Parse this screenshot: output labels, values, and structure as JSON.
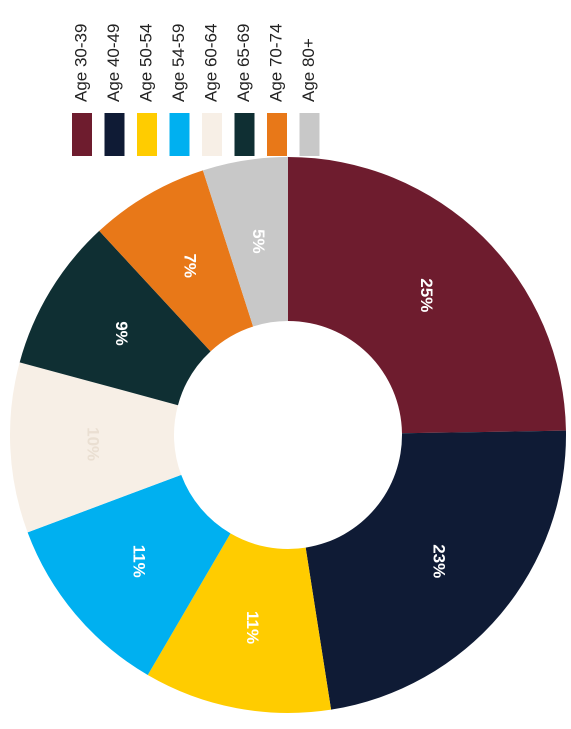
{
  "chart_data": {
    "type": "pie",
    "variant": "donut",
    "orientation": "rotated 90 degrees clockwise",
    "categories": [
      "Age 30-39",
      "Age 40-49",
      "Age 50-54",
      "Age 54-59",
      "Age 60-64",
      "Age 65-69",
      "Age 70-74",
      "Age 80+"
    ],
    "values": [
      25,
      23,
      11,
      11,
      10,
      9,
      7,
      5
    ],
    "value_labels": [
      "25%",
      "23%",
      "11%",
      "11%",
      "10%",
      "9%",
      "7%",
      "5%"
    ],
    "colors": [
      "#6e1c2e",
      "#0f1b35",
      "#ffcc00",
      "#00b0f0",
      "#f7efe6",
      "#0f2f33",
      "#e87818",
      "#c8c8c8"
    ],
    "label_colors": [
      "#ffffff",
      "#ffffff",
      "#ffffff",
      "#ffffff",
      "#eadfd2",
      "#ffffff",
      "#ffffff",
      "#ffffff"
    ],
    "legend_position": "top",
    "title": ""
  }
}
